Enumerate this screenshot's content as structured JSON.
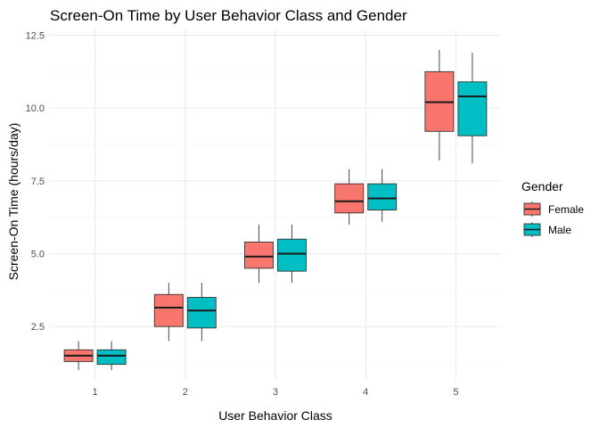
{
  "chart_data": {
    "type": "boxplot",
    "title": "Screen-On Time by User Behavior Class and Gender",
    "xlabel": "User Behavior Class",
    "ylabel": "Screen-On Time (hours/day)",
    "categories": [
      "1",
      "2",
      "3",
      "4",
      "5"
    ],
    "y_ticks": [
      2.5,
      5.0,
      7.5,
      10.0,
      12.5
    ],
    "y_tick_labels": [
      "2.5",
      "5.0",
      "7.5",
      "10.0",
      "12.5"
    ],
    "ylim": [
      0.7,
      12.7
    ],
    "grid": true,
    "legend": {
      "title": "Gender",
      "position": "right"
    },
    "series": [
      {
        "name": "Female",
        "color": "#F8766D",
        "boxes": [
          {
            "min": 1.0,
            "q1": 1.3,
            "median": 1.5,
            "q3": 1.7,
            "max": 2.0
          },
          {
            "min": 2.0,
            "q1": 2.5,
            "median": 3.15,
            "q3": 3.6,
            "max": 4.0
          },
          {
            "min": 4.0,
            "q1": 4.5,
            "median": 4.9,
            "q3": 5.4,
            "max": 6.0
          },
          {
            "min": 6.0,
            "q1": 6.4,
            "median": 6.8,
            "q3": 7.4,
            "max": 7.9
          },
          {
            "min": 8.2,
            "q1": 9.2,
            "median": 10.2,
            "q3": 11.25,
            "max": 12.0
          }
        ]
      },
      {
        "name": "Male",
        "color": "#00BFC4",
        "boxes": [
          {
            "min": 1.0,
            "q1": 1.2,
            "median": 1.5,
            "q3": 1.7,
            "max": 2.0
          },
          {
            "min": 2.0,
            "q1": 2.45,
            "median": 3.05,
            "q3": 3.5,
            "max": 4.0
          },
          {
            "min": 4.0,
            "q1": 4.4,
            "median": 5.0,
            "q3": 5.5,
            "max": 6.0
          },
          {
            "min": 6.1,
            "q1": 6.5,
            "median": 6.9,
            "q3": 7.4,
            "max": 7.9
          },
          {
            "min": 8.1,
            "q1": 9.05,
            "median": 10.4,
            "q3": 10.9,
            "max": 11.9
          }
        ]
      }
    ]
  }
}
